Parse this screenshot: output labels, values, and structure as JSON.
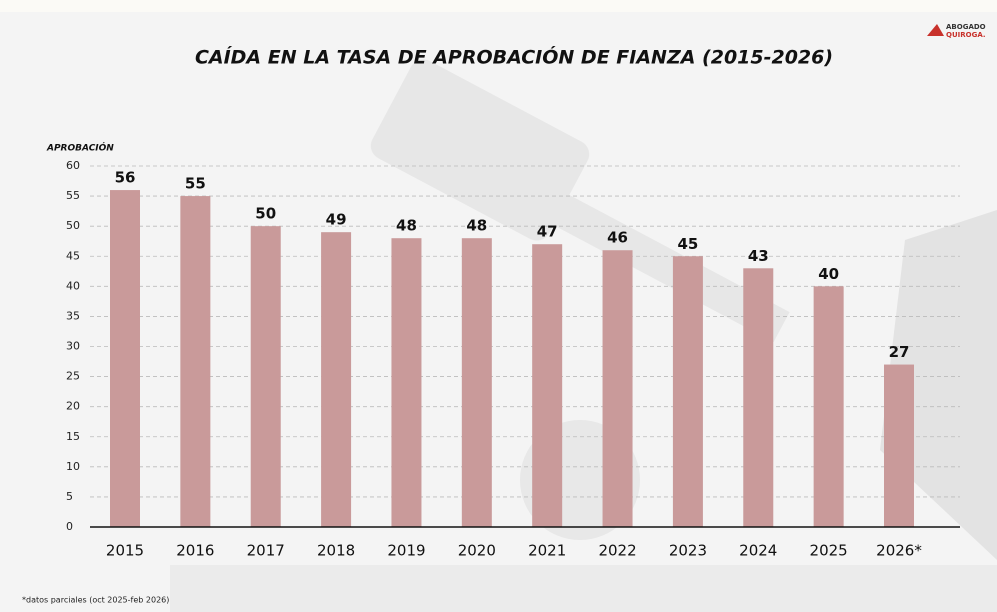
{
  "chart_data": {
    "type": "bar",
    "title": "CAÍDA EN LA TASA DE APROBACIÓN DE FIANZA (2015-2026)",
    "y_label": "APROBACIÓN",
    "categories": [
      "2015",
      "2016",
      "2017",
      "2018",
      "2019",
      "2020",
      "2021",
      "2022",
      "2023",
      "2024",
      "2025",
      "2026*"
    ],
    "values": [
      56,
      55,
      50,
      49,
      48,
      48,
      47,
      46,
      45,
      43,
      40,
      27
    ],
    "color": "#c99a9a",
    "ylim": [
      0,
      60
    ],
    "yticks": [
      0,
      5,
      10,
      15,
      20,
      25,
      30,
      35,
      40,
      45,
      50,
      55,
      60
    ],
    "grid": true,
    "footnote": "*datos parciales (oct 2025-feb 2026)"
  },
  "logo": {
    "line1": "ABOGADO",
    "line2": "QUIROGA."
  }
}
